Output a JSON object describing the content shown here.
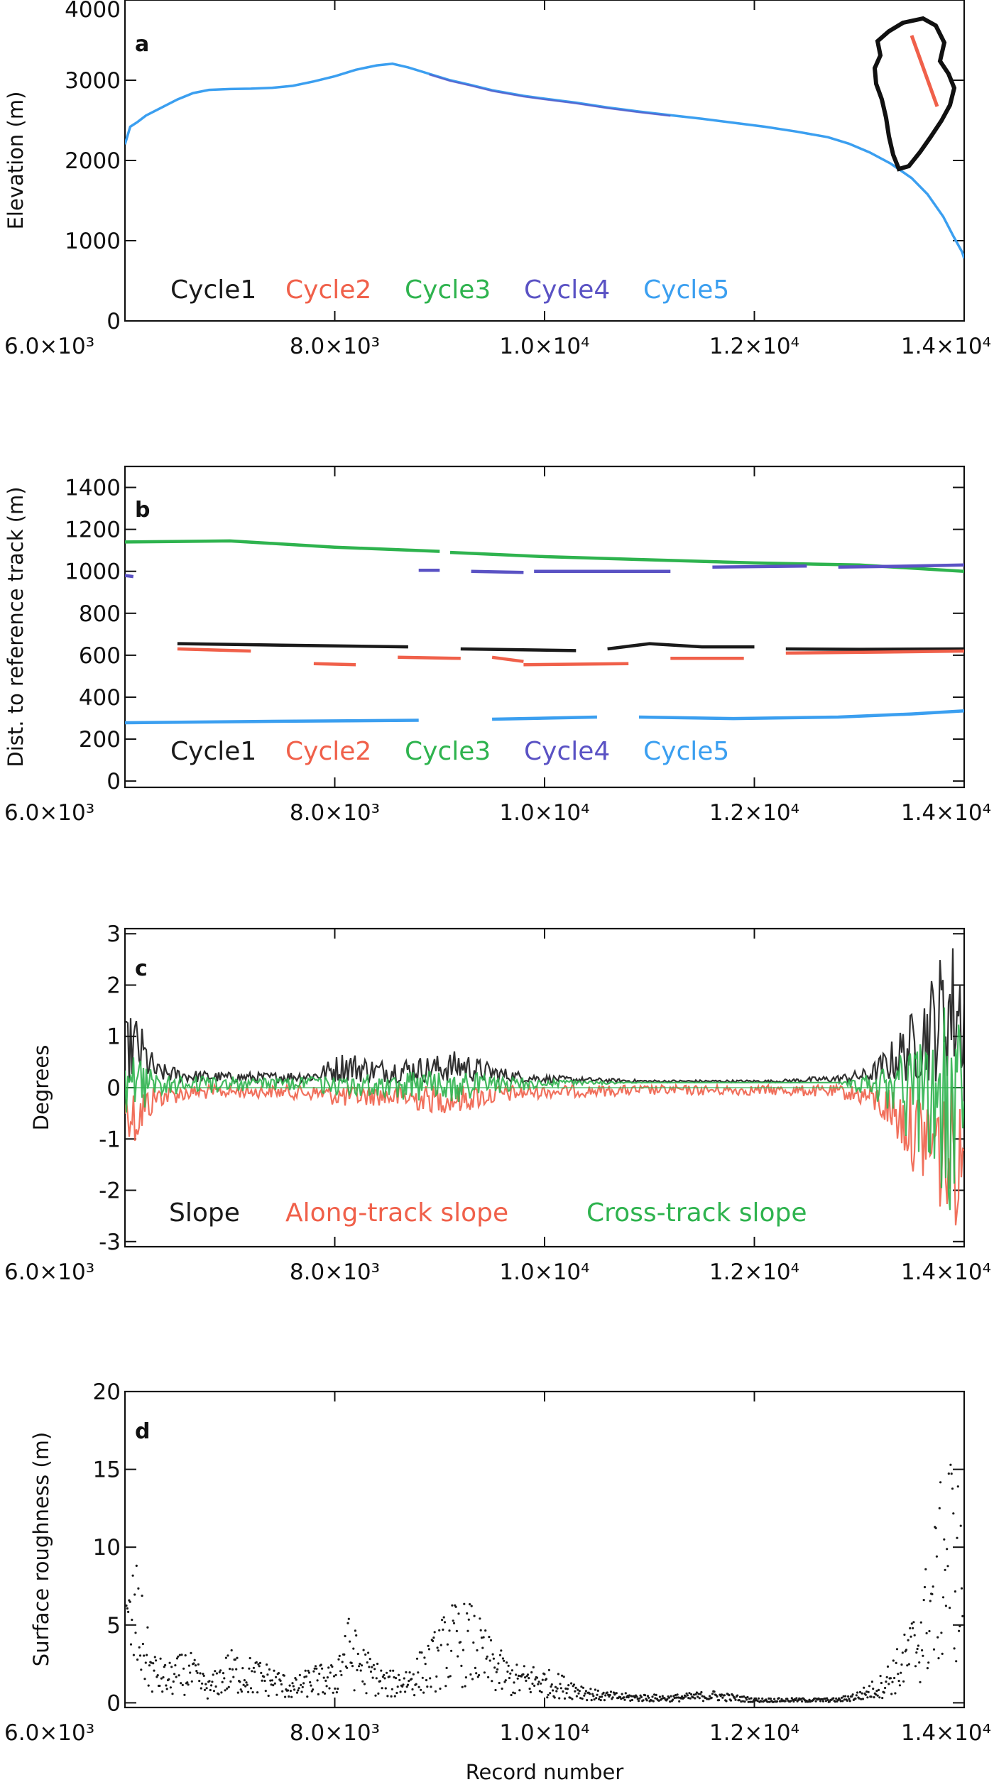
{
  "chart_data": [
    {
      "panel": "a",
      "type": "line",
      "ylabel": "Elevation (m)",
      "xlim": [
        6000,
        14000
      ],
      "ylim": [
        0,
        4000
      ],
      "x_ticks": [
        6000,
        8000,
        10000,
        12000,
        14000
      ],
      "x_tick_labels": [
        "6.0×10³",
        "8.0×10³",
        "1.0×10⁴",
        "1.2×10⁴",
        "1.4×10⁴"
      ],
      "y_ticks": [
        0,
        1000,
        2000,
        3000,
        4000
      ],
      "y_tick_labels": [
        "0",
        "1000",
        "2000",
        "3000",
        "4000"
      ],
      "legend_placement": "bottom-left",
      "inset": "Greenland outline with track",
      "series": [
        {
          "name": "Cycle1",
          "color": "#1a1a1a"
        },
        {
          "name": "Cycle2",
          "color": "#f0604a"
        },
        {
          "name": "Cycle3",
          "color": "#2eb34e"
        },
        {
          "name": "Cycle4",
          "color": "#5a52c4"
        },
        {
          "name": "Cycle5",
          "color": "#3b9ff0",
          "x": [
            6000,
            6050,
            6120,
            6200,
            6350,
            6500,
            6650,
            6800,
            7000,
            7200,
            7400,
            7600,
            7800,
            8000,
            8200,
            8400,
            8550,
            8700,
            8900,
            9100,
            9300,
            9500,
            9800,
            10000,
            10300,
            10600,
            10900,
            11200,
            11500,
            11800,
            12100,
            12400,
            12700,
            12900,
            13100,
            13300,
            13500,
            13650,
            13800,
            13900,
            13980,
            14000
          ],
          "values": [
            2200,
            2420,
            2480,
            2560,
            2660,
            2760,
            2840,
            2880,
            2890,
            2895,
            2905,
            2930,
            2985,
            3050,
            3130,
            3185,
            3205,
            3160,
            3080,
            3000,
            2940,
            2875,
            2805,
            2770,
            2720,
            2660,
            2610,
            2565,
            2520,
            2470,
            2420,
            2360,
            2290,
            2210,
            2100,
            1960,
            1780,
            1580,
            1300,
            1050,
            860,
            780
          ]
        }
      ]
    },
    {
      "panel": "b",
      "type": "line",
      "ylabel": "Dist. to reference track (m)",
      "xlim": [
        6000,
        14000
      ],
      "ylim": [
        -30,
        1500
      ],
      "x_ticks": [
        6000,
        8000,
        10000,
        12000,
        14000
      ],
      "x_tick_labels": [
        "6.0×10³",
        "8.0×10³",
        "1.0×10⁴",
        "1.2×10⁴",
        "1.4×10⁴"
      ],
      "y_ticks": [
        0,
        200,
        400,
        600,
        800,
        1000,
        1200,
        1400
      ],
      "y_tick_labels": [
        "0",
        "200",
        "400",
        "600",
        "800",
        "1000",
        "1200",
        "1400"
      ],
      "legend_placement": "bottom-left",
      "series": [
        {
          "name": "Cycle1",
          "color": "#1a1a1a",
          "segments": [
            [
              [
                6500,
                655
              ],
              [
                7500,
                648
              ],
              [
                8700,
                640
              ]
            ],
            [
              [
                9200,
                630
              ],
              [
                10300,
                622
              ]
            ],
            [
              [
                10600,
                630
              ],
              [
                11000,
                655
              ],
              [
                11500,
                640
              ],
              [
                12000,
                640
              ]
            ],
            [
              [
                12300,
                630
              ],
              [
                13000,
                628
              ],
              [
                14000,
                630
              ]
            ]
          ]
        },
        {
          "name": "Cycle2",
          "color": "#f0604a",
          "segments": [
            [
              [
                6500,
                630
              ],
              [
                7200,
                620
              ]
            ],
            [
              [
                7800,
                560
              ],
              [
                8200,
                555
              ]
            ],
            [
              [
                8600,
                590
              ],
              [
                9200,
                585
              ]
            ],
            [
              [
                9500,
                590
              ],
              [
                9800,
                570
              ]
            ],
            [
              [
                9800,
                555
              ],
              [
                10800,
                560
              ]
            ],
            [
              [
                11200,
                585
              ],
              [
                11900,
                585
              ]
            ],
            [
              [
                12300,
                610
              ],
              [
                13200,
                615
              ],
              [
                14000,
                620
              ]
            ]
          ]
        },
        {
          "name": "Cycle3",
          "color": "#2eb34e",
          "segments": [
            [
              [
                6000,
                1140
              ],
              [
                7000,
                1145
              ],
              [
                8000,
                1115
              ],
              [
                9000,
                1095
              ]
            ],
            [
              [
                9100,
                1090
              ],
              [
                10000,
                1070
              ],
              [
                11000,
                1055
              ],
              [
                12000,
                1040
              ],
              [
                13000,
                1030
              ],
              [
                14000,
                1000
              ]
            ]
          ]
        },
        {
          "name": "Cycle4",
          "color": "#5a52c4",
          "segments": [
            [
              [
                6000,
                980
              ],
              [
                6080,
                975
              ]
            ],
            [
              [
                8800,
                1005
              ],
              [
                9000,
                1005
              ]
            ],
            [
              [
                9300,
                1000
              ],
              [
                9800,
                995
              ]
            ],
            [
              [
                9900,
                1000
              ],
              [
                11200,
                1000
              ]
            ],
            [
              [
                11600,
                1020
              ],
              [
                12500,
                1025
              ]
            ],
            [
              [
                12800,
                1020
              ],
              [
                13500,
                1025
              ],
              [
                14000,
                1030
              ]
            ]
          ]
        },
        {
          "name": "Cycle5",
          "color": "#3b9ff0",
          "segments": [
            [
              [
                6000,
                278
              ],
              [
                7500,
                285
              ],
              [
                8800,
                290
              ]
            ],
            [
              [
                9500,
                295
              ],
              [
                10500,
                305
              ]
            ],
            [
              [
                10900,
                305
              ],
              [
                11800,
                298
              ],
              [
                12800,
                305
              ],
              [
                13500,
                320
              ],
              [
                14000,
                335
              ]
            ]
          ]
        }
      ]
    },
    {
      "panel": "c",
      "type": "line",
      "ylabel": "Degrees",
      "xlim": [
        6000,
        14000
      ],
      "ylim": [
        -3.1,
        3.1
      ],
      "x_ticks": [
        6000,
        8000,
        10000,
        12000,
        14000
      ],
      "x_tick_labels": [
        "6.0×10³",
        "8.0×10³",
        "1.0×10⁴",
        "1.2×10⁴",
        "1.4×10⁴"
      ],
      "y_ticks": [
        -3,
        -2,
        -1,
        0,
        1,
        2,
        3
      ],
      "y_tick_labels": [
        "-3",
        "-2",
        "-1",
        "0",
        "1",
        "2",
        "3"
      ],
      "legend_placement": "bottom-left",
      "series": [
        {
          "name": "Slope",
          "color": "#1a1a1a",
          "envelope_x": [
            6000,
            6100,
            6300,
            6600,
            7000,
            7400,
            7800,
            8100,
            8400,
            8700,
            9000,
            9200,
            9400,
            9600,
            9800,
            10000,
            10400,
            11000,
            11600,
            12200,
            12800,
            13100,
            13300,
            13500,
            13700,
            13850,
            14000
          ],
          "envelope_values": [
            1.3,
            1.5,
            0.5,
            0.35,
            0.3,
            0.3,
            0.35,
            0.75,
            0.55,
            0.6,
            0.65,
            0.75,
            0.55,
            0.4,
            0.3,
            0.25,
            0.2,
            0.15,
            0.15,
            0.15,
            0.25,
            0.4,
            0.9,
            1.5,
            2.3,
            3.0,
            2.8
          ]
        },
        {
          "name": "Along-track slope",
          "color": "#f0604a",
          "envelope_x": [
            6000,
            6100,
            6300,
            6600,
            7000,
            7400,
            7800,
            8100,
            8400,
            8700,
            9000,
            9200,
            9400,
            9600,
            9800,
            10000,
            10400,
            11000,
            11600,
            12200,
            12800,
            13100,
            13300,
            13500,
            13700,
            13850,
            14000
          ],
          "envelope_values": [
            -0.8,
            -1.2,
            -0.4,
            -0.25,
            -0.2,
            -0.2,
            -0.25,
            -0.4,
            -0.35,
            -0.45,
            -0.5,
            -0.5,
            -0.4,
            -0.3,
            -0.25,
            -0.2,
            -0.18,
            -0.15,
            -0.15,
            -0.15,
            -0.2,
            -0.4,
            -0.9,
            -1.6,
            -2.2,
            -2.8,
            -2.6
          ]
        },
        {
          "name": "Cross-track slope",
          "color": "#2eb34e",
          "envelope_x": [
            6000,
            6100,
            6300,
            6600,
            7000,
            7400,
            7800,
            8100,
            8400,
            8700,
            9000,
            9200,
            9400,
            9600,
            9800,
            10000,
            10400,
            11000,
            11600,
            12200,
            12800,
            13100,
            13300,
            13500,
            13700,
            13850,
            14000
          ],
          "envelope_values": [
            -0.6,
            -0.9,
            -0.3,
            -0.2,
            -0.2,
            -0.15,
            -0.2,
            -0.3,
            -0.3,
            -0.35,
            -0.35,
            -0.4,
            -0.3,
            -0.2,
            -0.15,
            -0.1,
            -0.05,
            0.0,
            0.0,
            0.0,
            0.0,
            -0.3,
            -0.7,
            -1.2,
            -1.8,
            -2.7,
            -1.5
          ]
        }
      ]
    },
    {
      "panel": "d",
      "type": "scatter",
      "ylabel": "Surface roughness (m)",
      "xlabel": "Record number",
      "xlim": [
        6000,
        14000
      ],
      "ylim": [
        -0.3,
        20
      ],
      "x_ticks": [
        6000,
        8000,
        10000,
        12000,
        14000
      ],
      "x_tick_labels": [
        "6.0×10³",
        "8.0×10³",
        "1.0×10⁴",
        "1.2×10⁴",
        "1.4×10⁴"
      ],
      "y_ticks": [
        0,
        5,
        10,
        15,
        20
      ],
      "y_tick_labels": [
        "0",
        "5",
        "10",
        "15",
        "20"
      ],
      "series": [
        {
          "name": "",
          "color": "#1a1a1a",
          "envelope_x": [
            6000,
            6100,
            6250,
            6400,
            6600,
            6800,
            7000,
            7200,
            7400,
            7600,
            7800,
            8000,
            8100,
            8300,
            8500,
            8700,
            8900,
            9100,
            9300,
            9500,
            9700,
            9900,
            10100,
            10300,
            10500,
            10800,
            11200,
            11600,
            12000,
            12400,
            12800,
            13000,
            13200,
            13400,
            13550,
            13700,
            13850,
            14000
          ],
          "envelope_values": [
            7.0,
            9.5,
            3.5,
            2.5,
            3.5,
            1.5,
            3.5,
            3.0,
            2.5,
            1.5,
            2.5,
            2.5,
            6.0,
            3.5,
            2.0,
            2.5,
            4.0,
            6.5,
            6.5,
            4.0,
            2.5,
            2.5,
            2.0,
            1.5,
            0.8,
            0.6,
            0.5,
            0.8,
            0.3,
            0.3,
            0.3,
            0.8,
            1.8,
            4.0,
            6.5,
            11.0,
            17.5,
            13.0
          ]
        }
      ]
    }
  ]
}
